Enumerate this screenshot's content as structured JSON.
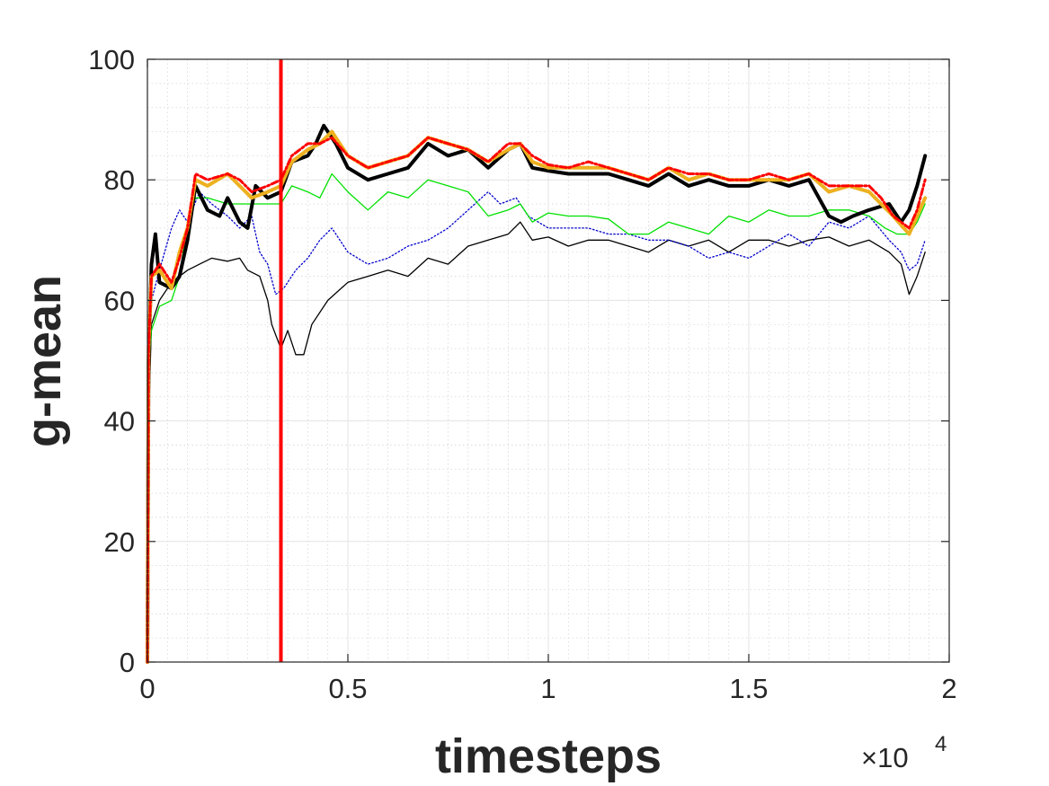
{
  "chart_data": {
    "type": "line",
    "xlabel": "timesteps",
    "ylabel": "g-mean",
    "x_exponent_label": {
      "times": "×10",
      "power": "4"
    },
    "xlim": [
      0,
      2
    ],
    "ylim": [
      0,
      100
    ],
    "xticks": [
      0,
      0.5,
      1,
      1.5,
      2
    ],
    "xtick_labels": [
      "0",
      "0.5",
      "1",
      "1.5",
      "2"
    ],
    "yticks": [
      0,
      20,
      40,
      60,
      80,
      100
    ],
    "ytick_labels": [
      "0",
      "20",
      "40",
      "60",
      "80",
      "100"
    ],
    "grid": true,
    "minor_grid": true,
    "vertical_marker": {
      "x": 0.333,
      "color": "#ff0000"
    },
    "series": [
      {
        "color": "#000000",
        "style": "thin-solid",
        "points": [
          [
            0,
            0
          ],
          [
            0.003,
            40
          ],
          [
            0.01,
            56
          ],
          [
            0.03,
            60
          ],
          [
            0.06,
            63
          ],
          [
            0.1,
            65
          ],
          [
            0.13,
            66
          ],
          [
            0.16,
            67
          ],
          [
            0.2,
            66.5
          ],
          [
            0.23,
            67
          ],
          [
            0.25,
            65
          ],
          [
            0.28,
            64
          ],
          [
            0.3,
            60
          ],
          [
            0.31,
            56
          ],
          [
            0.333,
            52
          ],
          [
            0.35,
            55
          ],
          [
            0.37,
            51
          ],
          [
            0.39,
            51
          ],
          [
            0.41,
            56
          ],
          [
            0.45,
            60
          ],
          [
            0.5,
            63
          ],
          [
            0.55,
            64
          ],
          [
            0.6,
            65
          ],
          [
            0.65,
            64
          ],
          [
            0.7,
            67
          ],
          [
            0.75,
            66
          ],
          [
            0.8,
            69
          ],
          [
            0.85,
            70
          ],
          [
            0.9,
            71
          ],
          [
            0.93,
            73
          ],
          [
            0.96,
            70
          ],
          [
            1.0,
            70.5
          ],
          [
            1.05,
            69
          ],
          [
            1.1,
            70
          ],
          [
            1.15,
            70
          ],
          [
            1.2,
            69
          ],
          [
            1.25,
            68
          ],
          [
            1.3,
            70
          ],
          [
            1.35,
            69
          ],
          [
            1.4,
            70
          ],
          [
            1.45,
            68
          ],
          [
            1.5,
            70
          ],
          [
            1.55,
            70
          ],
          [
            1.6,
            69
          ],
          [
            1.65,
            70
          ],
          [
            1.7,
            70.5
          ],
          [
            1.75,
            69
          ],
          [
            1.8,
            70
          ],
          [
            1.85,
            68
          ],
          [
            1.88,
            66
          ],
          [
            1.9,
            61
          ],
          [
            1.92,
            64
          ],
          [
            1.94,
            68
          ]
        ]
      },
      {
        "color": "#0000cc",
        "style": "dotted",
        "points": [
          [
            0,
            0
          ],
          [
            0.003,
            45
          ],
          [
            0.01,
            60
          ],
          [
            0.03,
            65
          ],
          [
            0.06,
            72
          ],
          [
            0.08,
            75
          ],
          [
            0.1,
            73
          ],
          [
            0.13,
            78
          ],
          [
            0.16,
            76
          ],
          [
            0.2,
            74
          ],
          [
            0.23,
            72
          ],
          [
            0.26,
            74
          ],
          [
            0.28,
            68
          ],
          [
            0.3,
            66
          ],
          [
            0.32,
            61
          ],
          [
            0.34,
            62
          ],
          [
            0.37,
            65
          ],
          [
            0.4,
            67
          ],
          [
            0.43,
            70
          ],
          [
            0.46,
            72
          ],
          [
            0.5,
            68
          ],
          [
            0.55,
            66
          ],
          [
            0.6,
            67
          ],
          [
            0.65,
            69
          ],
          [
            0.7,
            70
          ],
          [
            0.75,
            72
          ],
          [
            0.8,
            75
          ],
          [
            0.85,
            78
          ],
          [
            0.88,
            76
          ],
          [
            0.92,
            77
          ],
          [
            0.95,
            74
          ],
          [
            1.0,
            72
          ],
          [
            1.05,
            72
          ],
          [
            1.1,
            72
          ],
          [
            1.15,
            71
          ],
          [
            1.2,
            71
          ],
          [
            1.25,
            70
          ],
          [
            1.3,
            70
          ],
          [
            1.35,
            69
          ],
          [
            1.4,
            67
          ],
          [
            1.45,
            68
          ],
          [
            1.5,
            67
          ],
          [
            1.55,
            69
          ],
          [
            1.6,
            71
          ],
          [
            1.65,
            69
          ],
          [
            1.7,
            73
          ],
          [
            1.75,
            72
          ],
          [
            1.8,
            74
          ],
          [
            1.85,
            70
          ],
          [
            1.88,
            68
          ],
          [
            1.9,
            65
          ],
          [
            1.92,
            66
          ],
          [
            1.94,
            70
          ]
        ]
      },
      {
        "color": "#00e000",
        "style": "thin-solid",
        "points": [
          [
            0,
            0
          ],
          [
            0.003,
            48
          ],
          [
            0.01,
            55
          ],
          [
            0.03,
            59
          ],
          [
            0.06,
            60
          ],
          [
            0.08,
            64
          ],
          [
            0.1,
            73
          ],
          [
            0.12,
            77
          ],
          [
            0.15,
            77
          ],
          [
            0.2,
            76
          ],
          [
            0.25,
            76
          ],
          [
            0.3,
            76
          ],
          [
            0.333,
            76
          ],
          [
            0.36,
            79
          ],
          [
            0.4,
            78
          ],
          [
            0.43,
            77
          ],
          [
            0.46,
            81
          ],
          [
            0.5,
            78
          ],
          [
            0.55,
            75
          ],
          [
            0.6,
            78
          ],
          [
            0.65,
            77
          ],
          [
            0.7,
            80
          ],
          [
            0.75,
            79
          ],
          [
            0.8,
            78
          ],
          [
            0.85,
            74
          ],
          [
            0.9,
            75
          ],
          [
            0.93,
            76
          ],
          [
            0.96,
            73
          ],
          [
            1.0,
            74.5
          ],
          [
            1.05,
            74
          ],
          [
            1.1,
            74
          ],
          [
            1.15,
            73.5
          ],
          [
            1.2,
            71
          ],
          [
            1.25,
            71
          ],
          [
            1.3,
            73
          ],
          [
            1.35,
            72
          ],
          [
            1.4,
            71
          ],
          [
            1.45,
            74
          ],
          [
            1.5,
            73
          ],
          [
            1.55,
            75
          ],
          [
            1.6,
            74
          ],
          [
            1.65,
            74
          ],
          [
            1.7,
            75
          ],
          [
            1.75,
            75
          ],
          [
            1.8,
            74
          ],
          [
            1.84,
            72
          ],
          [
            1.87,
            71
          ],
          [
            1.9,
            71
          ],
          [
            1.92,
            73
          ],
          [
            1.94,
            76
          ]
        ]
      },
      {
        "color": "#000000",
        "style": "thick-solid",
        "points": [
          [
            0,
            0
          ],
          [
            0.003,
            50
          ],
          [
            0.01,
            66
          ],
          [
            0.02,
            71
          ],
          [
            0.03,
            63
          ],
          [
            0.06,
            62
          ],
          [
            0.08,
            64
          ],
          [
            0.1,
            70
          ],
          [
            0.12,
            79
          ],
          [
            0.15,
            75
          ],
          [
            0.18,
            74
          ],
          [
            0.2,
            77
          ],
          [
            0.23,
            73
          ],
          [
            0.25,
            72
          ],
          [
            0.27,
            79
          ],
          [
            0.3,
            77
          ],
          [
            0.333,
            78
          ],
          [
            0.36,
            83
          ],
          [
            0.4,
            84
          ],
          [
            0.42,
            86
          ],
          [
            0.44,
            89
          ],
          [
            0.47,
            86
          ],
          [
            0.5,
            82
          ],
          [
            0.55,
            80
          ],
          [
            0.6,
            81
          ],
          [
            0.65,
            82
          ],
          [
            0.7,
            86
          ],
          [
            0.75,
            84
          ],
          [
            0.8,
            85
          ],
          [
            0.85,
            82
          ],
          [
            0.9,
            85
          ],
          [
            0.93,
            86
          ],
          [
            0.96,
            82
          ],
          [
            1.0,
            81.5
          ],
          [
            1.05,
            81
          ],
          [
            1.1,
            81
          ],
          [
            1.15,
            81
          ],
          [
            1.2,
            80
          ],
          [
            1.25,
            79
          ],
          [
            1.3,
            81
          ],
          [
            1.35,
            79
          ],
          [
            1.4,
            80
          ],
          [
            1.45,
            79
          ],
          [
            1.5,
            79
          ],
          [
            1.55,
            80
          ],
          [
            1.6,
            79
          ],
          [
            1.65,
            80
          ],
          [
            1.7,
            74
          ],
          [
            1.73,
            73
          ],
          [
            1.76,
            74
          ],
          [
            1.8,
            75
          ],
          [
            1.85,
            76
          ],
          [
            1.88,
            73
          ],
          [
            1.9,
            75
          ],
          [
            1.92,
            79
          ],
          [
            1.94,
            84
          ]
        ]
      },
      {
        "color": "#edb120",
        "style": "thick-solid",
        "points": [
          [
            0,
            0
          ],
          [
            0.003,
            52
          ],
          [
            0.01,
            64
          ],
          [
            0.03,
            65
          ],
          [
            0.06,
            62
          ],
          [
            0.08,
            68
          ],
          [
            0.1,
            72
          ],
          [
            0.12,
            80
          ],
          [
            0.15,
            79
          ],
          [
            0.2,
            81
          ],
          [
            0.23,
            79
          ],
          [
            0.26,
            77
          ],
          [
            0.3,
            78
          ],
          [
            0.333,
            79
          ],
          [
            0.36,
            83
          ],
          [
            0.4,
            85
          ],
          [
            0.43,
            86
          ],
          [
            0.46,
            88
          ],
          [
            0.5,
            84
          ],
          [
            0.55,
            82
          ],
          [
            0.6,
            83
          ],
          [
            0.65,
            84
          ],
          [
            0.7,
            87
          ],
          [
            0.75,
            86
          ],
          [
            0.8,
            85
          ],
          [
            0.85,
            83
          ],
          [
            0.9,
            85
          ],
          [
            0.93,
            86
          ],
          [
            0.96,
            83
          ],
          [
            1.0,
            82
          ],
          [
            1.05,
            82
          ],
          [
            1.1,
            82
          ],
          [
            1.15,
            82
          ],
          [
            1.2,
            81
          ],
          [
            1.25,
            80
          ],
          [
            1.3,
            82
          ],
          [
            1.35,
            80
          ],
          [
            1.4,
            81
          ],
          [
            1.45,
            80
          ],
          [
            1.5,
            80
          ],
          [
            1.55,
            80
          ],
          [
            1.6,
            80
          ],
          [
            1.65,
            81
          ],
          [
            1.7,
            78
          ],
          [
            1.75,
            79
          ],
          [
            1.8,
            78
          ],
          [
            1.83,
            76
          ],
          [
            1.86,
            74
          ],
          [
            1.9,
            71
          ],
          [
            1.92,
            74
          ],
          [
            1.94,
            77
          ]
        ]
      },
      {
        "color": "#ff0000",
        "style": "dash-dot",
        "points": [
          [
            0,
            0
          ],
          [
            0.003,
            52
          ],
          [
            0.01,
            64
          ],
          [
            0.03,
            66
          ],
          [
            0.06,
            63
          ],
          [
            0.08,
            67
          ],
          [
            0.1,
            72
          ],
          [
            0.12,
            81
          ],
          [
            0.15,
            80
          ],
          [
            0.2,
            81
          ],
          [
            0.23,
            80
          ],
          [
            0.26,
            78
          ],
          [
            0.3,
            79
          ],
          [
            0.333,
            80
          ],
          [
            0.36,
            84
          ],
          [
            0.4,
            86
          ],
          [
            0.43,
            86
          ],
          [
            0.46,
            87
          ],
          [
            0.5,
            84
          ],
          [
            0.55,
            82
          ],
          [
            0.6,
            83
          ],
          [
            0.65,
            84
          ],
          [
            0.7,
            87
          ],
          [
            0.75,
            86
          ],
          [
            0.8,
            85
          ],
          [
            0.85,
            83
          ],
          [
            0.9,
            86
          ],
          [
            0.93,
            86
          ],
          [
            0.96,
            84
          ],
          [
            1.0,
            82.5
          ],
          [
            1.05,
            82
          ],
          [
            1.1,
            83
          ],
          [
            1.15,
            82
          ],
          [
            1.2,
            81
          ],
          [
            1.25,
            80
          ],
          [
            1.3,
            82
          ],
          [
            1.35,
            81
          ],
          [
            1.4,
            81
          ],
          [
            1.45,
            80
          ],
          [
            1.5,
            80
          ],
          [
            1.55,
            81
          ],
          [
            1.6,
            80
          ],
          [
            1.65,
            81
          ],
          [
            1.7,
            79
          ],
          [
            1.75,
            79
          ],
          [
            1.8,
            79
          ],
          [
            1.83,
            77
          ],
          [
            1.86,
            74
          ],
          [
            1.9,
            72
          ],
          [
            1.92,
            75
          ],
          [
            1.94,
            80
          ]
        ]
      }
    ]
  }
}
